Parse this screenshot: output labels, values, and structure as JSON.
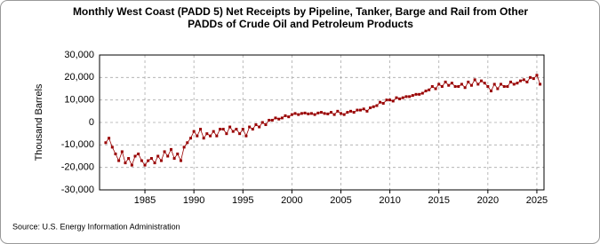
{
  "chart_data": {
    "type": "line",
    "title": "Monthly West Coast (PADD 5) Net Receipts by Pipeline, Tanker, Barge and Rail from Other PADDs of Crude Oil and Petroleum Products",
    "y_label": "Thousand Barrels",
    "source": "Source: U.S. Energy Information Administration",
    "xlim": [
      1980.37,
      2025.73
    ],
    "ylim": [
      -30000,
      30000
    ],
    "xticks": [
      1985,
      1990,
      1995,
      2000,
      2005,
      2010,
      2015,
      2020,
      2025
    ],
    "yticks": [
      {
        "value": -30000,
        "label": "-30,000"
      },
      {
        "value": -20000,
        "label": "-20,000"
      },
      {
        "value": -10000,
        "label": "-10,000"
      },
      0,
      {
        "value": 10000,
        "label": "10,000"
      },
      {
        "value": 20000,
        "label": "20,000"
      },
      {
        "value": 30000,
        "label": "30,000"
      }
    ],
    "grid": true,
    "x": [
      1981,
      1981.33,
      1981.67,
      1982,
      1982.33,
      1982.67,
      1983,
      1983.33,
      1983.67,
      1984,
      1984.33,
      1984.67,
      1985,
      1985.33,
      1985.67,
      1986,
      1986.33,
      1986.67,
      1987,
      1987.33,
      1987.67,
      1988,
      1988.33,
      1988.67,
      1989,
      1989.33,
      1989.67,
      1990,
      1990.33,
      1990.67,
      1991,
      1991.33,
      1991.67,
      1992,
      1992.33,
      1992.67,
      1993,
      1993.33,
      1993.67,
      1994,
      1994.33,
      1994.67,
      1995,
      1995.33,
      1995.67,
      1996,
      1996.33,
      1996.67,
      1997,
      1997.33,
      1997.67,
      1998,
      1998.33,
      1998.67,
      1999,
      1999.33,
      1999.67,
      2000,
      2000.33,
      2000.67,
      2001,
      2001.33,
      2001.67,
      2002,
      2002.33,
      2002.67,
      2003,
      2003.33,
      2003.67,
      2004,
      2004.33,
      2004.67,
      2005,
      2005.33,
      2005.67,
      2006,
      2006.33,
      2006.67,
      2007,
      2007.33,
      2007.67,
      2008,
      2008.33,
      2008.67,
      2009,
      2009.33,
      2009.67,
      2010,
      2010.33,
      2010.67,
      2011,
      2011.33,
      2011.67,
      2012,
      2012.33,
      2012.67,
      2013,
      2013.33,
      2013.67,
      2014,
      2014.33,
      2014.67,
      2015,
      2015.33,
      2015.67,
      2016,
      2016.33,
      2016.67,
      2017,
      2017.33,
      2017.67,
      2018,
      2018.33,
      2018.67,
      2019,
      2019.33,
      2019.67,
      2020,
      2020.33,
      2020.67,
      2021,
      2021.33,
      2021.67,
      2022,
      2022.33,
      2022.67,
      2023,
      2023.33,
      2023.67,
      2024,
      2024.33,
      2024.67,
      2025,
      2025.33
    ],
    "series": [
      {
        "color": "#990000",
        "values": [
          -9000,
          -7000,
          -11000,
          -14000,
          -17000,
          -13000,
          -18000,
          -16000,
          -19000,
          -15000,
          -14000,
          -17000,
          -19000,
          -17000,
          -16000,
          -18000,
          -15000,
          -17000,
          -13000,
          -15000,
          -12000,
          -16000,
          -14000,
          -17000,
          -11000,
          -9000,
          -7000,
          -4000,
          -6000,
          -3000,
          -7000,
          -5000,
          -6000,
          -4000,
          -6000,
          -3000,
          -3000,
          -5000,
          -2000,
          -4000,
          -3000,
          -5000,
          -3000,
          -6000,
          -2000,
          -3000,
          -1000,
          -2000,
          0,
          -1000,
          1000,
          1000,
          2000,
          1500,
          2000,
          3000,
          2500,
          3500,
          4000,
          3500,
          4000,
          4200,
          3800,
          4000,
          3500,
          4200,
          4500,
          4000,
          3800,
          4500,
          3500,
          5000,
          4000,
          3500,
          4500,
          5000,
          4500,
          5500,
          5500,
          6000,
          5000,
          6500,
          7000,
          7500,
          9000,
          8500,
          10000,
          10000,
          9500,
          11000,
          10500,
          11000,
          11500,
          11500,
          12000,
          12500,
          12500,
          13000,
          14000,
          14500,
          16000,
          15000,
          17000,
          16000,
          18000,
          16500,
          17500,
          16000,
          16000,
          17000,
          15500,
          18000,
          16500,
          19000,
          17000,
          18500,
          17500,
          16000,
          14000,
          17000,
          15000,
          17000,
          16000,
          16000,
          18000,
          17000,
          17500,
          18500,
          19000,
          18000,
          20000,
          19500,
          21000,
          17000
        ]
      }
    ]
  }
}
